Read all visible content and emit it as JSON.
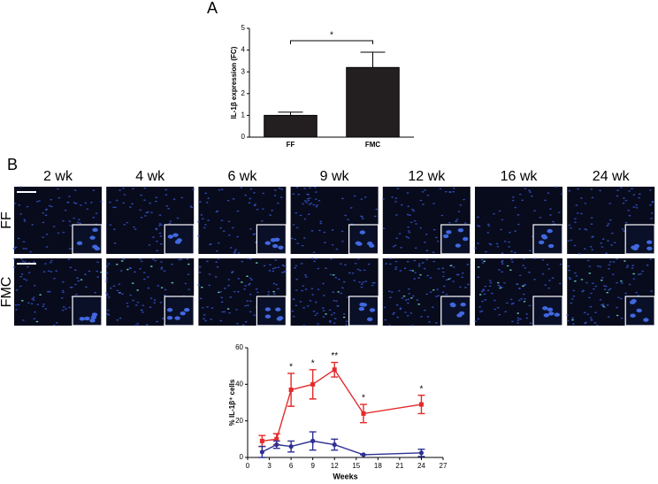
{
  "panel_labels": [
    "A",
    "B"
  ],
  "chart_data": [
    {
      "type": "bar",
      "y_label": "IL-1β expression (FC)",
      "categories": [
        "FF",
        "FMC"
      ],
      "values": [
        1.0,
        3.2
      ],
      "errors": [
        0.15,
        0.7
      ],
      "color": "#231f20",
      "ylim": [
        0,
        5
      ],
      "yticks": [
        0,
        1,
        2,
        3,
        4,
        5
      ],
      "annotations": [
        {
          "text": "*"
        }
      ]
    },
    {
      "type": "line",
      "x_label": "Weeks",
      "y_label": "% IL-1β⁺ cells",
      "x": [
        2,
        4,
        6,
        9,
        12,
        16,
        24
      ],
      "series": [
        {
          "color": "#e32b2b",
          "marker": "square",
          "values": [
            9,
            10,
            37,
            40,
            48,
            24,
            29
          ],
          "errors": [
            3,
            3,
            9,
            8,
            4,
            5,
            5
          ]
        },
        {
          "color": "#2e3192",
          "marker": "circle",
          "values": [
            3,
            7,
            6,
            9,
            7,
            1.5,
            2.5
          ],
          "errors": [
            3,
            2,
            3,
            5,
            3,
            0,
            2
          ]
        }
      ],
      "xlim": [
        0,
        27
      ],
      "xticks": [
        0,
        3,
        6,
        9,
        12,
        15,
        18,
        21,
        24,
        27
      ],
      "ylim": [
        0,
        60
      ],
      "yticks": [
        0,
        20,
        40,
        60
      ],
      "annotations": [
        {
          "x": 6,
          "text": "*"
        },
        {
          "x": 9,
          "text": "*"
        },
        {
          "x": 12,
          "text": "**"
        },
        {
          "x": 16,
          "text": "*"
        },
        {
          "x": 24,
          "text": "*"
        }
      ]
    }
  ],
  "image_grid": {
    "columns": [
      "2 wk",
      "4 wk",
      "6 wk",
      "9 wk",
      "12 wk",
      "16 wk",
      "24 wk"
    ],
    "rows": [
      "FF",
      "FMC"
    ]
  }
}
